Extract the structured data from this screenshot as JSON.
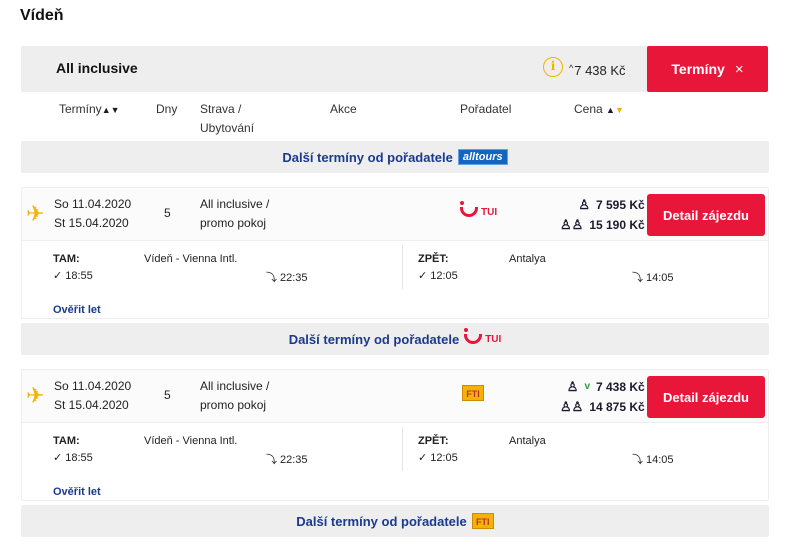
{
  "page": {
    "title": "Vídeň"
  },
  "summary": {
    "board": "All inclusive",
    "info_icon": "i",
    "price_caret": "^",
    "price": "7 438 Kč",
    "terminy_label": "Termíny",
    "close_glyph": "×"
  },
  "table_header": {
    "terminy": "Termíny",
    "dny": "Dny",
    "strava_line1": "Strava /",
    "strava_line2": "Ubytování",
    "akce": "Akce",
    "poradatel": "Pořadatel",
    "cena": "Cena"
  },
  "org_bars": [
    {
      "text": "Další termíny od pořadatele",
      "logo": "alltours",
      "logo_text": "alltours"
    },
    {
      "text": "Další termíny od pořadatele",
      "logo": "tui",
      "logo_text": "TUI"
    },
    {
      "text": "Další termíny od pořadatele",
      "logo": "fti",
      "logo_text": "FTI"
    }
  ],
  "offers": [
    {
      "date_from": "So 11.04.2020",
      "date_to": "St 15.04.2020",
      "days": "5",
      "board_line1": "All inclusive /",
      "board_line2": "promo pokoj",
      "organizer": "TUI",
      "price_single": "7 595 Kč",
      "price_double": "15 190 Kč",
      "price_single_check": "",
      "detail_label": "Detail zájezdu",
      "flight": {
        "tam_label": "TAM:",
        "tam_dep_time": "18:55",
        "tam_place": "Vídeň - Vienna Intl.",
        "tam_arr_time": "22:35",
        "zpet_label": "ZPĚT:",
        "zpet_dep_time": "12:05",
        "zpet_place": "Antalya",
        "zpet_arr_time": "14:05",
        "verify_label": "Ověřit let"
      }
    },
    {
      "date_from": "So 11.04.2020",
      "date_to": "St 15.04.2020",
      "days": "5",
      "board_line1": "All inclusive /",
      "board_line2": "promo pokoj",
      "organizer": "FTI",
      "price_single": "7 438 Kč",
      "price_double": "14 875 Kč",
      "price_single_check": "v",
      "detail_label": "Detail zájezdu",
      "flight": {
        "tam_label": "TAM:",
        "tam_dep_time": "18:55",
        "tam_place": "Vídeň - Vienna Intl.",
        "tam_arr_time": "22:35",
        "zpet_label": "ZPĚT:",
        "zpet_dep_time": "12:05",
        "zpet_place": "Antalya",
        "zpet_arr_time": "14:05",
        "verify_label": "Ověřit let"
      }
    }
  ],
  "colors": {
    "accent": "#e8173a",
    "link": "#1b3a8c",
    "highlight": "#f2b400",
    "bar_bg": "#eeeeef"
  }
}
